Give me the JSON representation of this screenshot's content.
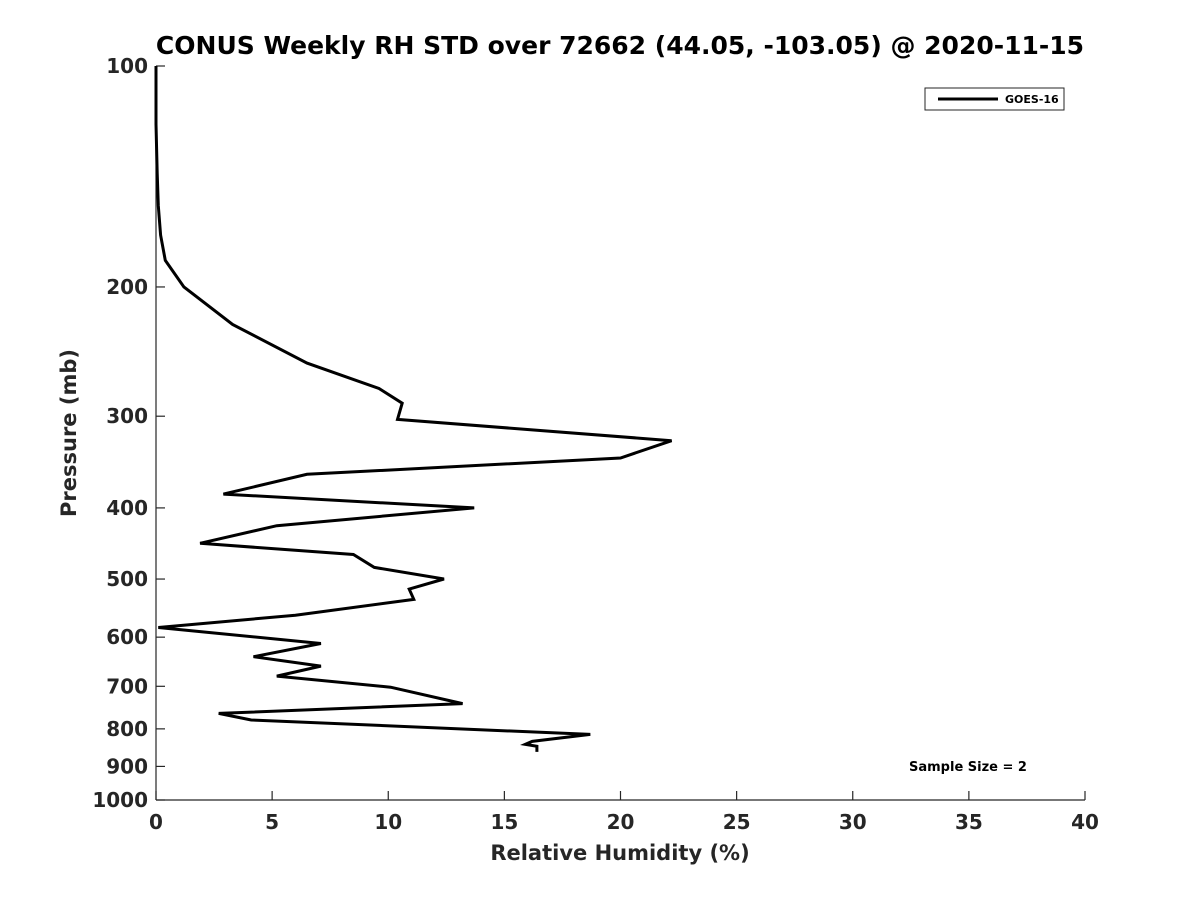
{
  "chart_data": {
    "type": "line",
    "title": "CONUS Weekly RH STD over 72662 (44.05, -103.05) @ 2020-11-15",
    "xlabel": "Relative Humidity (%)",
    "ylabel": "Pressure (mb)",
    "xlim": [
      0,
      40
    ],
    "ylim": [
      100,
      1000
    ],
    "y_scale": "log",
    "y_reversed": true,
    "grid": false,
    "legend_position": "top-right",
    "x_ticks": [
      0,
      5,
      10,
      15,
      20,
      25,
      30,
      35,
      40
    ],
    "y_ticks": [
      100,
      200,
      300,
      400,
      500,
      600,
      700,
      800,
      900,
      1000
    ],
    "series": [
      {
        "name": "GOES-16",
        "color": "#000000",
        "x": [
          0.0,
          0.0,
          0.05,
          0.1,
          0.2,
          0.4,
          1.2,
          3.3,
          6.5,
          9.6,
          10.6,
          10.4,
          22.2,
          20.0,
          6.5,
          2.9,
          13.7,
          5.2,
          1.9,
          8.5,
          9.4,
          12.4,
          10.9,
          11.1,
          6.0,
          0.1,
          7.1,
          4.2,
          7.1,
          5.2,
          10.1,
          13.2,
          2.7,
          4.1,
          18.7,
          16.2,
          15.9,
          16.4,
          16.4
        ],
        "y": [
          100,
          120,
          140,
          155,
          170,
          184,
          200,
          225,
          254,
          275,
          288,
          303,
          324,
          342,
          360,
          383,
          400,
          423,
          447,
          463,
          482,
          500,
          516,
          533,
          560,
          582,
          612,
          638,
          657,
          678,
          702,
          739,
          762,
          778,
          814,
          832,
          840,
          845,
          860
        ]
      }
    ],
    "annotations": [
      "Sample Size = 2"
    ]
  }
}
